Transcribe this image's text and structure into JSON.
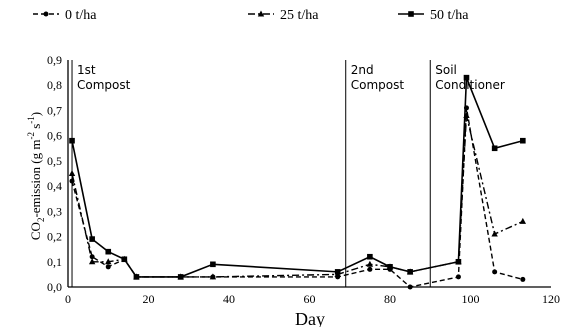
{
  "chart_data": {
    "type": "line",
    "xlabel": "Day",
    "ylabel_main": "CO",
    "ylabel_sub2": "2",
    "ylabel_rest": "-emission (g m",
    "ylabel_sup1": "-2",
    "ylabel_mid": " s",
    "ylabel_sup2": "-1",
    "ylabel_end": ")",
    "xlim": [
      0,
      120
    ],
    "ylim": [
      0,
      0.9
    ],
    "x_ticks": [
      "0",
      "20",
      "40",
      "60",
      "80",
      "100",
      "120"
    ],
    "y_ticks": [
      "0,0",
      "0,1",
      "0,2",
      "0,3",
      "0,4",
      "0,5",
      "0,6",
      "0,7",
      "0,8",
      "0,9"
    ],
    "grid": false,
    "legend_position": "top",
    "series": [
      {
        "name": "0 t/ha",
        "marker": "circle",
        "line": "dash",
        "x": [
          1,
          6,
          10,
          14,
          17,
          28,
          36,
          67,
          75,
          80,
          85,
          97,
          99,
          106,
          113
        ],
        "y": [
          0.42,
          0.12,
          0.08,
          0.11,
          0.04,
          0.04,
          0.04,
          0.04,
          0.07,
          0.07,
          0.0,
          0.04,
          0.71,
          0.06,
          0.03
        ]
      },
      {
        "name": "25 t/ha",
        "marker": "triangle",
        "line": "dashdot",
        "x": [
          1,
          6,
          10,
          14,
          17,
          28,
          36,
          67,
          75,
          80,
          85,
          97,
          99,
          106,
          113
        ],
        "y": [
          0.45,
          0.1,
          0.1,
          0.11,
          0.04,
          0.04,
          0.04,
          0.05,
          0.09,
          0.08,
          0.06,
          0.1,
          0.68,
          0.21,
          0.26
        ]
      },
      {
        "name": "50 t/ha",
        "marker": "square",
        "line": "solid",
        "x": [
          1,
          6,
          10,
          14,
          17,
          28,
          36,
          67,
          75,
          80,
          85,
          97,
          99,
          106,
          113
        ],
        "y": [
          0.58,
          0.19,
          0.14,
          0.11,
          0.04,
          0.04,
          0.09,
          0.06,
          0.12,
          0.08,
          0.06,
          0.1,
          0.83,
          0.55,
          0.58
        ]
      }
    ],
    "annotations": [
      {
        "x": 1,
        "lines": [
          "1st",
          "Compost"
        ]
      },
      {
        "x": 69,
        "lines": [
          "2nd",
          "Compost"
        ]
      },
      {
        "x": 90,
        "lines": [
          "Soil",
          "Conditioner"
        ]
      }
    ]
  }
}
